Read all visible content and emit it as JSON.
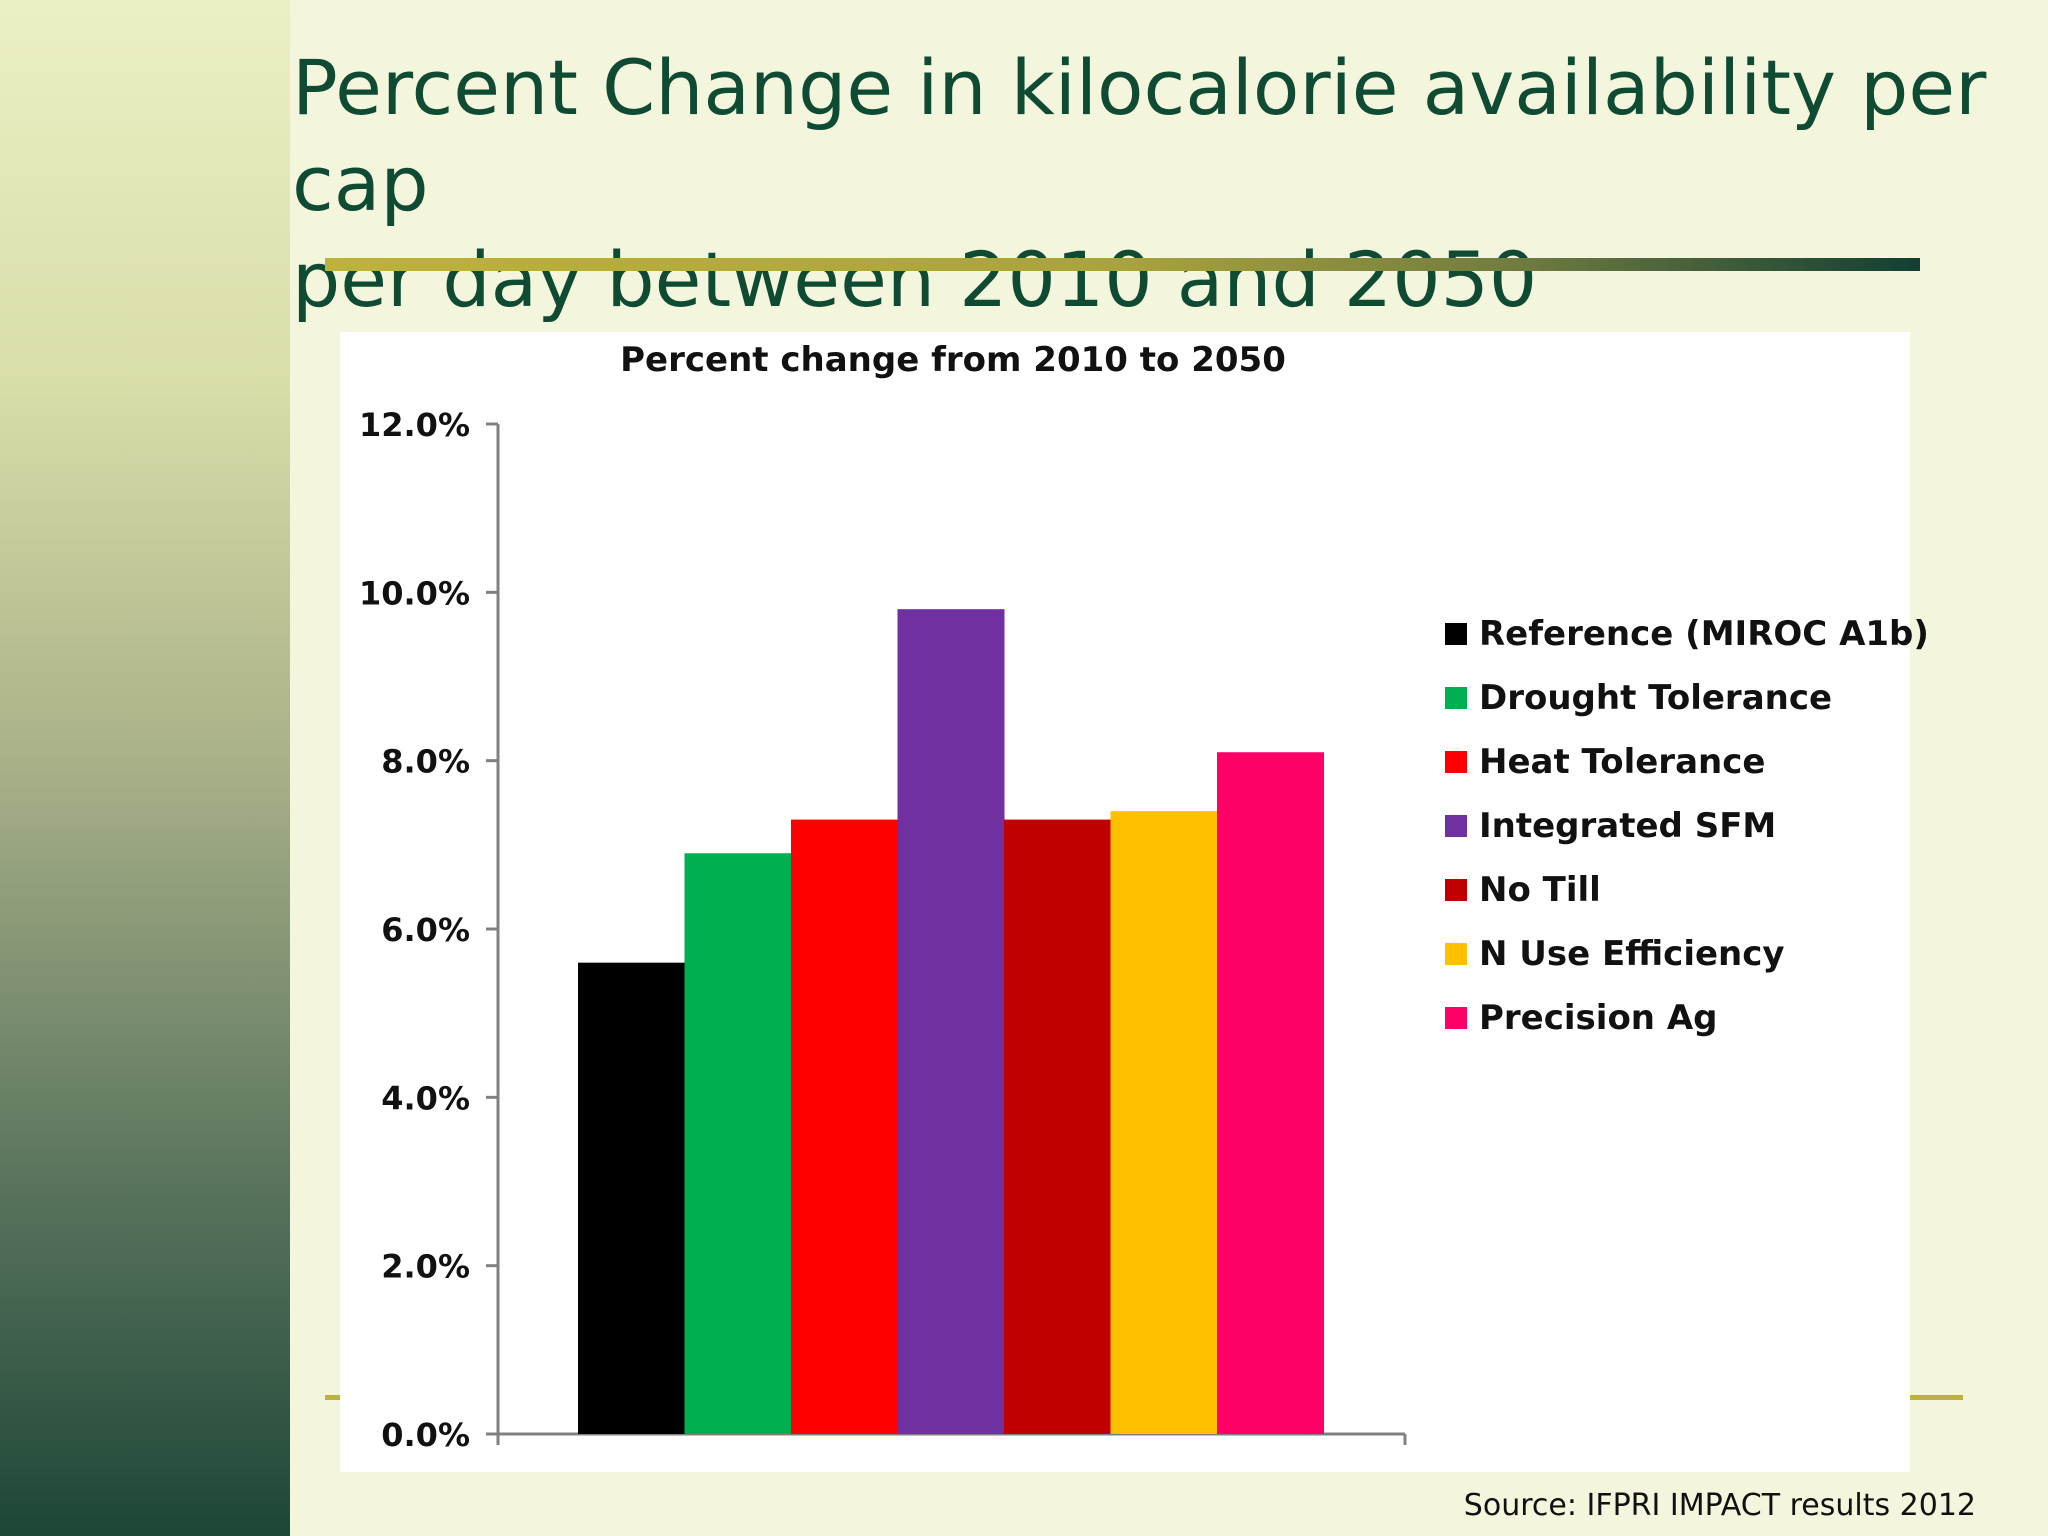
{
  "slide": {
    "title": "Percent Change in kilocalorie availability per cap\n per day between 2010 and 2050",
    "source": "Source: IFPRI IMPACT results 2012"
  },
  "colors": {
    "title": "#0f4a33",
    "rule": "#bdb23a"
  },
  "chart_data": {
    "type": "bar",
    "title": "Percent change from 2010 to 2050",
    "xlabel": "",
    "ylabel": "",
    "ylim": [
      0,
      12
    ],
    "y_ticks": [
      "0.0%",
      "2.0%",
      "4.0%",
      "6.0%",
      "8.0%",
      "10.0%",
      "12.0%"
    ],
    "grid": false,
    "legend_position": "right",
    "series": [
      {
        "name": "Reference (MIROC A1b)",
        "value": 5.6,
        "color": "#000000"
      },
      {
        "name": "Drought Tolerance",
        "value": 6.9,
        "color": "#00b050"
      },
      {
        "name": "Heat Tolerance",
        "value": 7.3,
        "color": "#ff0000"
      },
      {
        "name": "Integrated SFM",
        "value": 9.8,
        "color": "#7030a0"
      },
      {
        "name": "No Till",
        "value": 7.3,
        "color": "#c00000"
      },
      {
        "name": "N Use Efficiency",
        "value": 7.4,
        "color": "#ffc000"
      },
      {
        "name": "Precision Ag",
        "value": 8.1,
        "color": "#ff0066"
      }
    ]
  }
}
